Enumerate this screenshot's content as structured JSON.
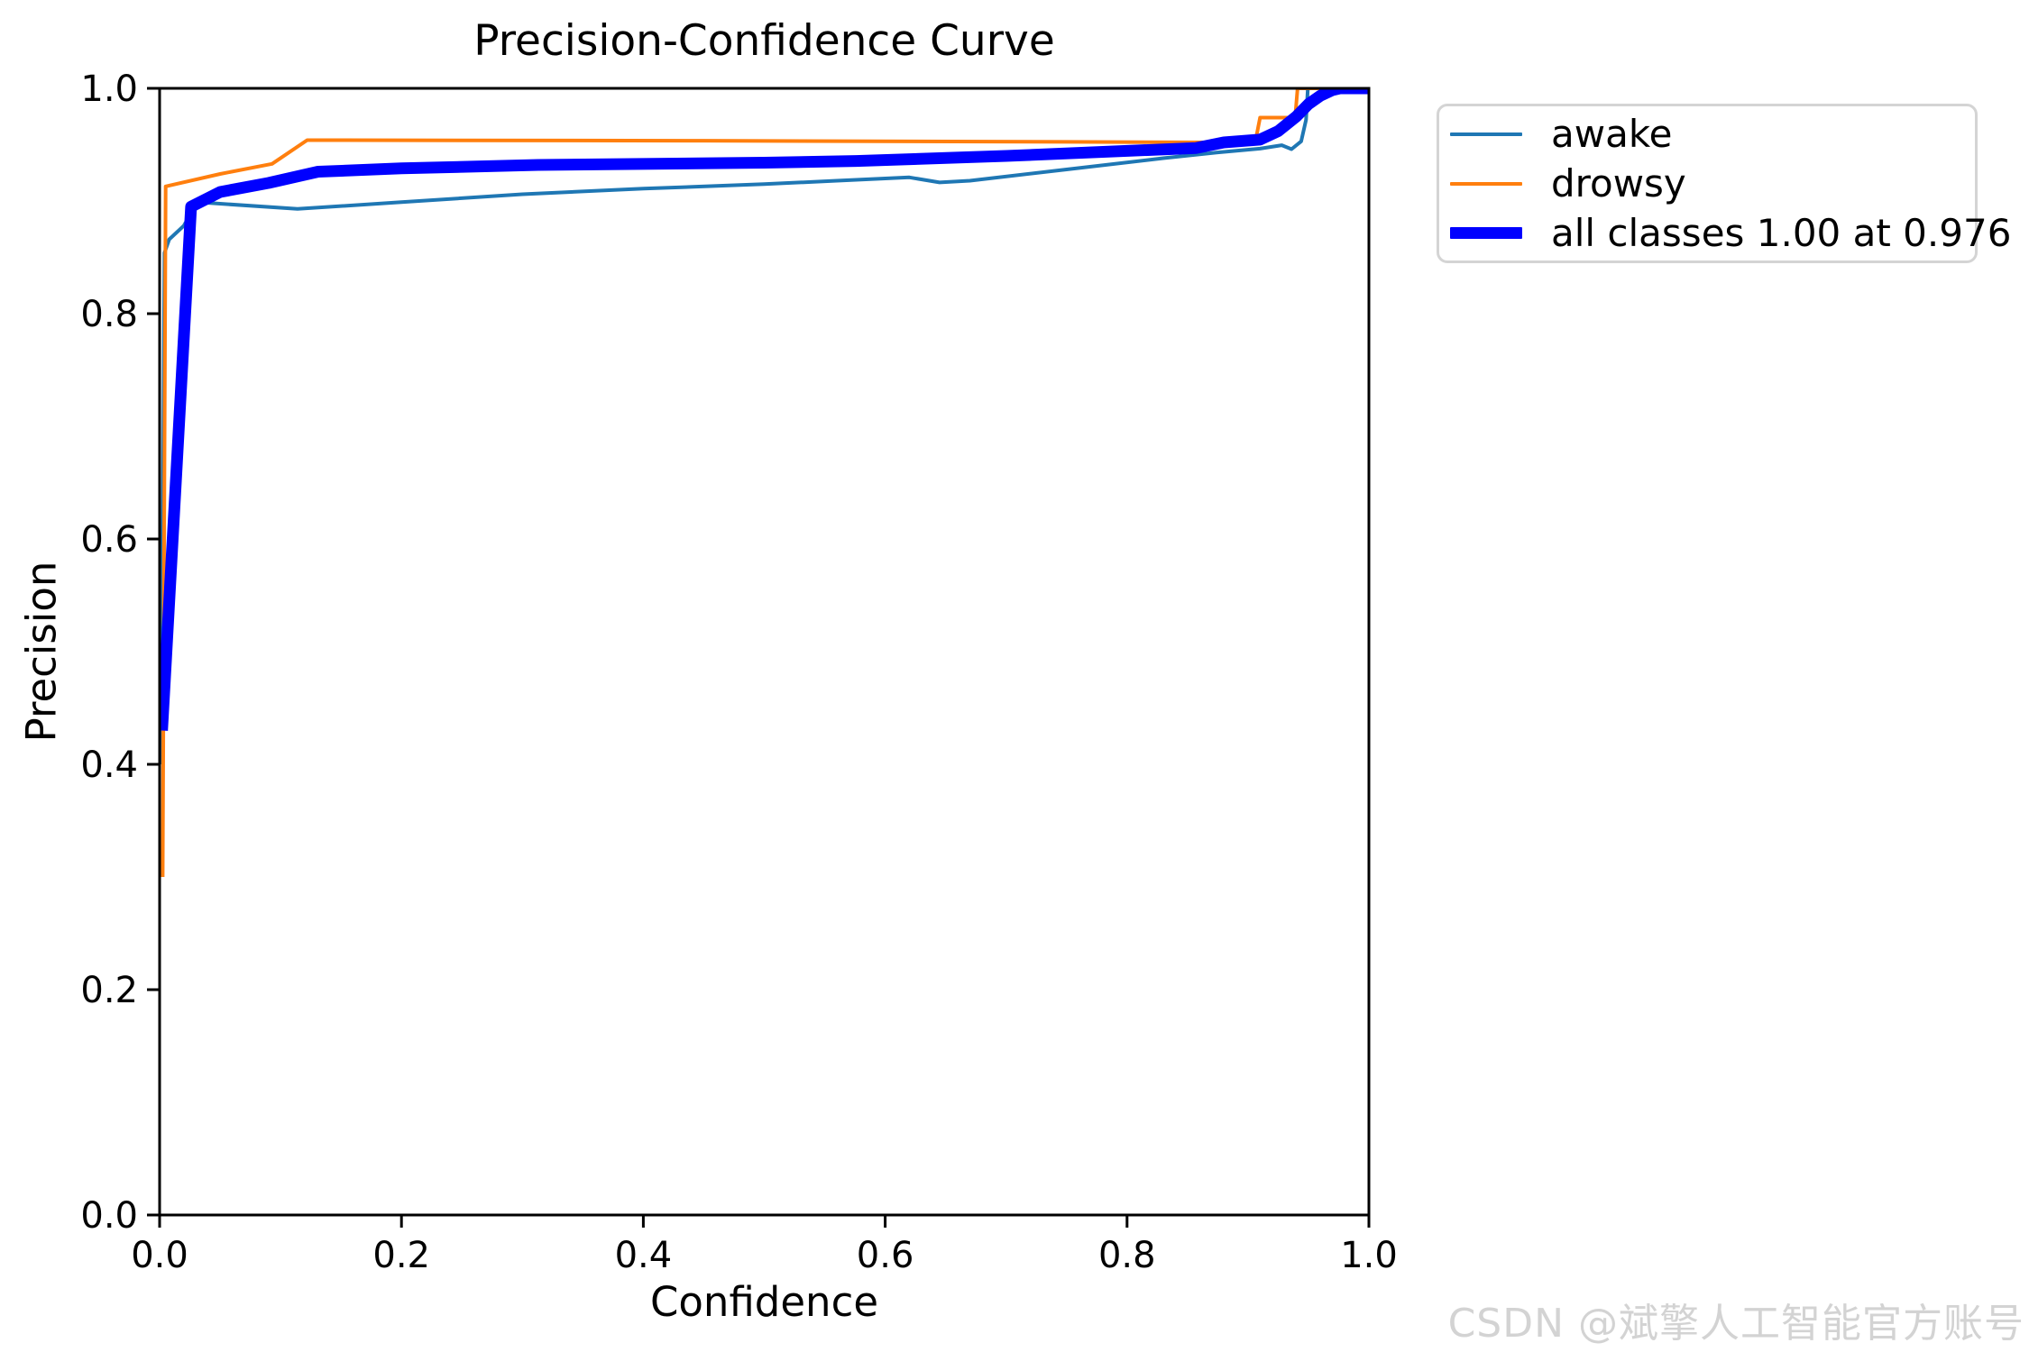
{
  "chart_data": {
    "type": "line",
    "title": "Precision-Confidence Curve",
    "xlabel": "Confidence",
    "ylabel": "Precision",
    "xlim": [
      0,
      1
    ],
    "ylim": [
      0,
      1
    ],
    "xticks": [
      "0.0",
      "0.2",
      "0.4",
      "0.6",
      "0.8",
      "1.0"
    ],
    "yticks": [
      "0.0",
      "0.2",
      "0.4",
      "0.6",
      "0.8",
      "1.0"
    ],
    "grid": false,
    "legend_position": "outside-upper-right",
    "series": [
      {
        "name": "awake",
        "label": "awake",
        "color": "#1f77b4",
        "line_width": 4,
        "points": [
          [
            0.0015,
            0.4
          ],
          [
            0.004,
            0.854
          ],
          [
            0.008,
            0.866
          ],
          [
            0.02,
            0.878
          ],
          [
            0.031,
            0.899
          ],
          [
            0.114,
            0.893
          ],
          [
            0.2,
            0.899
          ],
          [
            0.3,
            0.906
          ],
          [
            0.4,
            0.911
          ],
          [
            0.5,
            0.915
          ],
          [
            0.56,
            0.918
          ],
          [
            0.62,
            0.921
          ],
          [
            0.645,
            0.9165
          ],
          [
            0.67,
            0.918
          ],
          [
            0.75,
            0.928
          ],
          [
            0.83,
            0.938
          ],
          [
            0.874,
            0.943
          ],
          [
            0.91,
            0.9465
          ],
          [
            0.928,
            0.9495
          ],
          [
            0.936,
            0.946
          ],
          [
            0.944,
            0.953
          ],
          [
            0.948,
            0.972
          ],
          [
            0.9495,
            1.0
          ],
          [
            1.0,
            1.0
          ]
        ]
      },
      {
        "name": "drowsy",
        "label": "drowsy",
        "color": "#ff7f0e",
        "line_width": 4,
        "points": [
          [
            0.0025,
            0.3
          ],
          [
            0.005,
            0.913
          ],
          [
            0.05,
            0.924
          ],
          [
            0.093,
            0.933
          ],
          [
            0.122,
            0.954
          ],
          [
            0.45,
            0.9535
          ],
          [
            0.75,
            0.9525
          ],
          [
            0.87,
            0.952
          ],
          [
            0.906,
            0.952
          ],
          [
            0.91,
            0.974
          ],
          [
            0.939,
            0.974
          ],
          [
            0.941,
            1.0
          ],
          [
            1.0,
            1.0
          ]
        ]
      },
      {
        "name": "all classes",
        "label": "all classes 1.00 at 0.976",
        "color": "#0000ff",
        "line_width": 13,
        "points": [
          [
            0.002,
            0.43
          ],
          [
            0.026,
            0.895
          ],
          [
            0.05,
            0.908
          ],
          [
            0.09,
            0.916
          ],
          [
            0.131,
            0.926
          ],
          [
            0.2,
            0.929
          ],
          [
            0.313,
            0.932
          ],
          [
            0.5,
            0.934
          ],
          [
            0.576,
            0.9355
          ],
          [
            0.7,
            0.94
          ],
          [
            0.8,
            0.9445
          ],
          [
            0.857,
            0.947
          ],
          [
            0.88,
            0.952
          ],
          [
            0.91,
            0.9545
          ],
          [
            0.925,
            0.962
          ],
          [
            0.94,
            0.975
          ],
          [
            0.95,
            0.986
          ],
          [
            0.96,
            0.9935
          ],
          [
            0.97,
            0.9985
          ],
          [
            0.976,
            1.0
          ],
          [
            1.0,
            1.0
          ]
        ]
      }
    ]
  },
  "watermark": {
    "text": "CSDN @斌擎人工智能官方账号"
  }
}
